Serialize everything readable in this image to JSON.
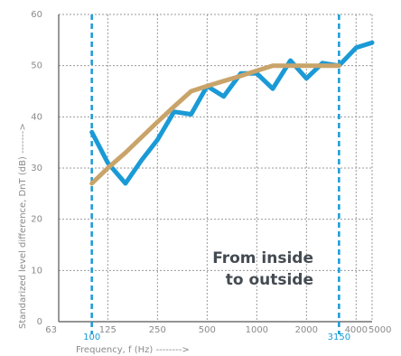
{
  "chart_data": {
    "type": "line",
    "xlabel": "Frequency, f (Hz) -------->",
    "ylabel": "Standarized level difference, DnT (dB) ------->",
    "xscale": "log",
    "xlim": [
      63,
      5000
    ],
    "ylim": [
      0,
      60
    ],
    "x_ticks": [
      63,
      125,
      250,
      500,
      1000,
      2000,
      4000,
      5000
    ],
    "x_tick_labels": [
      "63",
      "125",
      "250",
      "500",
      "1000",
      "2000",
      "4000",
      "5000"
    ],
    "y_ticks": [
      0,
      10,
      20,
      30,
      40,
      50,
      60
    ],
    "grid": true,
    "markers": [
      {
        "x": 100,
        "label": "100",
        "color": "#1a9ad6"
      },
      {
        "x": 3150,
        "label": "3150",
        "color": "#1a9ad6"
      }
    ],
    "series": [
      {
        "color": "#1a9ad6",
        "x": [
          100,
          125,
          160,
          200,
          250,
          315,
          400,
          500,
          630,
          800,
          1000,
          1250,
          1600,
          2000,
          2500,
          3150,
          4000,
          5000
        ],
        "y": [
          37,
          31,
          27,
          31.5,
          35.5,
          41,
          40.5,
          46,
          44,
          48.5,
          48.5,
          45.5,
          51,
          47.5,
          50.5,
          50,
          53.5,
          54.5
        ]
      },
      {
        "color": "#c9a46a",
        "x": [
          100,
          125,
          160,
          200,
          250,
          315,
          400,
          500,
          630,
          800,
          1000,
          1250,
          1600,
          2000,
          2500,
          3150
        ],
        "y": [
          27,
          30,
          33,
          36,
          39,
          42,
          45,
          46,
          47,
          48,
          49,
          50,
          50,
          50,
          50,
          50
        ]
      }
    ],
    "annotation": [
      "From inside",
      "to outside"
    ]
  }
}
